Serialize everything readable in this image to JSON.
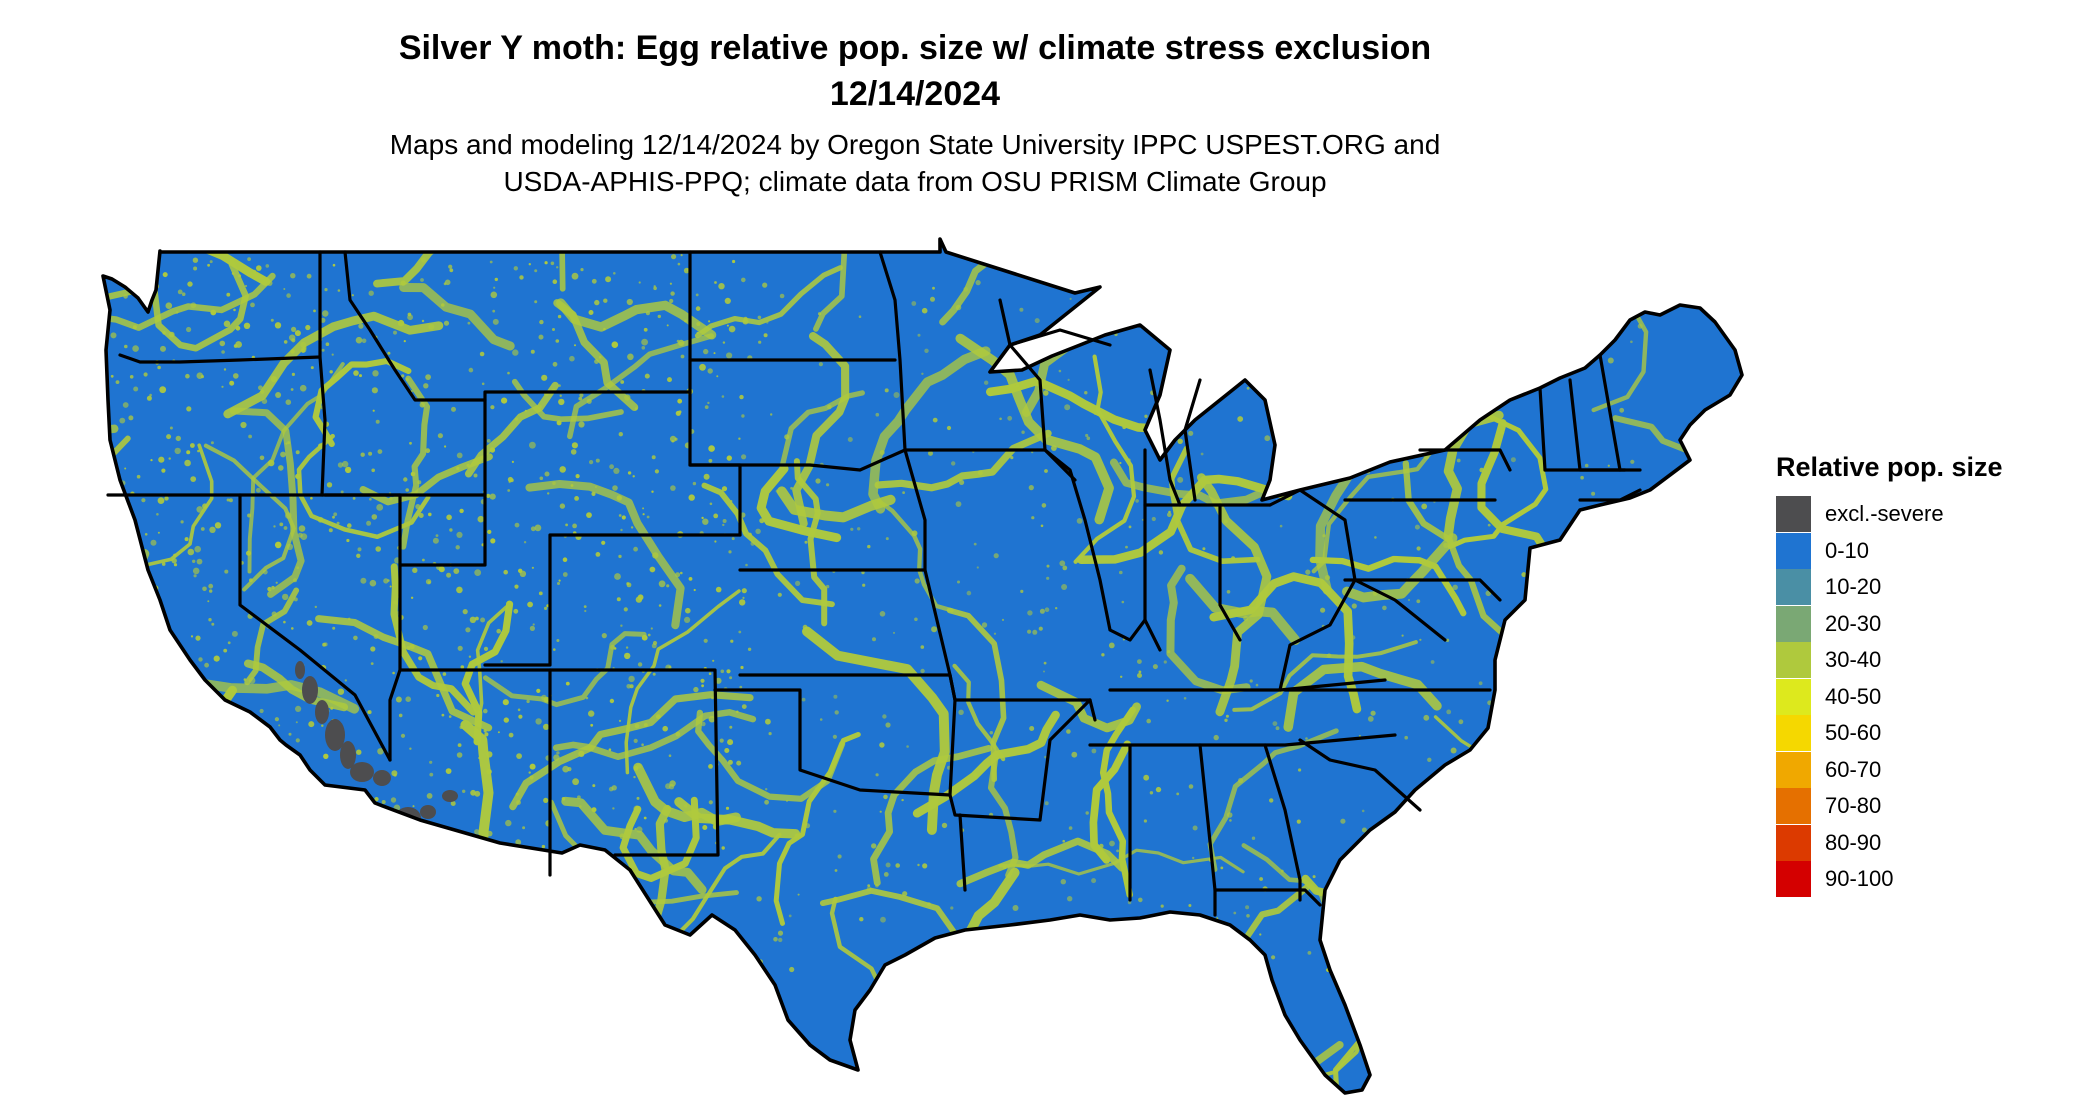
{
  "title": {
    "line1": "Silver Y moth: Egg relative pop. size w/ climate stress exclusion",
    "line2": "12/14/2024"
  },
  "subtitle": {
    "line1": "Maps and modeling 12/14/2024 by Oregon State University IPPC USPEST.ORG and",
    "line2": "USDA-APHIS-PPQ; climate data from OSU PRISM Climate Group"
  },
  "legend": {
    "title": "Relative pop. size",
    "items": [
      {
        "label": "excl.-severe",
        "color": "#4d4d4f"
      },
      {
        "label": "0-10",
        "color": "#1f74d1"
      },
      {
        "label": "10-20",
        "color": "#4a8fa5"
      },
      {
        "label": "20-30",
        "color": "#7aa874"
      },
      {
        "label": "30-40",
        "color": "#afc93d"
      },
      {
        "label": "40-50",
        "color": "#dde91d"
      },
      {
        "label": "50-60",
        "color": "#f5d800"
      },
      {
        "label": "60-70",
        "color": "#f0a800"
      },
      {
        "label": "70-80",
        "color": "#e57000"
      },
      {
        "label": "80-90",
        "color": "#dc3a00"
      },
      {
        "label": "90-100",
        "color": "#d40000"
      }
    ]
  },
  "map": {
    "base_color": "#1f74d1",
    "highlight_color": "#afc93d",
    "excluded_color": "#4d4d4f",
    "border_color": "#000000"
  }
}
